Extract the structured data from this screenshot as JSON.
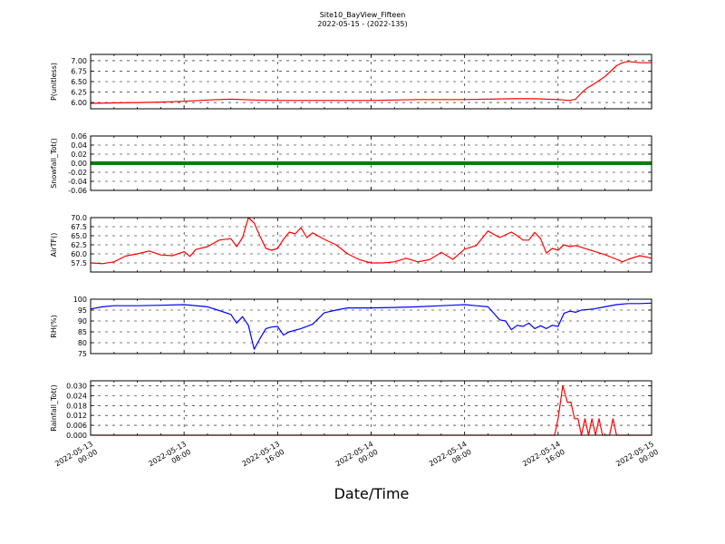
{
  "figure": {
    "title": "Site10_BayView_Fifteen",
    "subtitle": "2022-05-15 - (2022-135)",
    "xlabel": "Date/Time"
  },
  "x_ticks": [
    {
      "t": 0,
      "line1": "2022-05-13",
      "line2": "00:00"
    },
    {
      "t": 8,
      "line1": "2022-05-13",
      "line2": "08:00"
    },
    {
      "t": 16,
      "line1": "2022-05-13",
      "line2": "16:00"
    },
    {
      "t": 24,
      "line1": "2022-05-14",
      "line2": "00:00"
    },
    {
      "t": 32,
      "line1": "2022-05-14",
      "line2": "08:00"
    },
    {
      "t": 40,
      "line1": "2022-05-14",
      "line2": "16:00"
    },
    {
      "t": 48,
      "line1": "2022-05-15",
      "line2": "00:00"
    }
  ],
  "chart_data": [
    {
      "type": "line",
      "ylabel": "P(unitless)",
      "ylim": [
        5.85,
        7.15
      ],
      "yticks": [
        "6.00",
        "6.25",
        "6.50",
        "6.75",
        "7.00"
      ],
      "ytick_values": [
        6.0,
        6.25,
        6.5,
        6.75,
        7.0
      ],
      "color": "#ff0000",
      "x_hours": [
        0,
        2,
        4,
        6,
        8,
        10,
        12,
        14,
        16,
        20,
        24,
        28,
        32,
        36,
        38,
        40,
        40.5,
        41,
        41.5,
        42,
        42.5,
        43,
        44,
        44.5,
        45,
        45.5,
        46,
        47,
        48
      ],
      "y": [
        5.98,
        5.99,
        6.0,
        6.01,
        6.03,
        6.06,
        6.08,
        6.06,
        6.05,
        6.05,
        6.05,
        6.07,
        6.07,
        6.09,
        6.09,
        6.07,
        6.06,
        6.05,
        6.08,
        6.23,
        6.35,
        6.43,
        6.62,
        6.75,
        6.88,
        6.95,
        6.98,
        6.95,
        6.95
      ]
    },
    {
      "type": "line",
      "ylabel": "Snowfall_Tot()",
      "ylim": [
        -0.06,
        0.06
      ],
      "yticks": [
        "0.06",
        "0.04",
        "0.02",
        "0.00",
        "-0.02",
        "-0.04",
        "-0.06"
      ],
      "ytick_values": [
        0.06,
        0.04,
        0.02,
        0.0,
        -0.02,
        -0.04,
        -0.06
      ],
      "color": "#008000",
      "x_hours": [
        0,
        48
      ],
      "y": [
        0,
        0
      ]
    },
    {
      "type": "line",
      "ylabel": "AirTF()",
      "ylim": [
        55.0,
        70.0
      ],
      "yticks": [
        "70.0",
        "67.5",
        "65.0",
        "62.5",
        "60.0",
        "57.5"
      ],
      "ytick_values": [
        70.0,
        67.5,
        65.0,
        62.5,
        60.0,
        57.5
      ],
      "color": "#ff0000",
      "x_hours": [
        0,
        1,
        2,
        3,
        4,
        5,
        6,
        7,
        8,
        8.5,
        9,
        10,
        11,
        12,
        12.5,
        13,
        13.5,
        14,
        14.5,
        15,
        15.5,
        16,
        16.5,
        17,
        17.5,
        18,
        18.5,
        19,
        20,
        21,
        22,
        23,
        24,
        25,
        26,
        27,
        28,
        29,
        30,
        31,
        32,
        33,
        34,
        35,
        36,
        36.5,
        37,
        37.5,
        38,
        38.5,
        39,
        39.5,
        40,
        40.5,
        41,
        41.5,
        42,
        43,
        44,
        45,
        45.5,
        46,
        47,
        48
      ],
      "y": [
        57.5,
        57.3,
        57.8,
        59.4,
        60.0,
        60.8,
        59.7,
        59.5,
        60.6,
        59.3,
        61.2,
        62.0,
        63.8,
        64.2,
        62.0,
        64.5,
        70.0,
        68.5,
        64.8,
        61.5,
        61.0,
        61.5,
        64.0,
        66.0,
        65.5,
        67.2,
        64.5,
        65.8,
        64.0,
        62.5,
        60.0,
        58.4,
        57.5,
        57.5,
        57.8,
        58.8,
        57.8,
        58.4,
        60.4,
        58.5,
        61.3,
        62.3,
        66.3,
        64.5,
        66.0,
        65.0,
        63.8,
        63.8,
        65.9,
        64.2,
        60.2,
        61.5,
        61.0,
        62.5,
        62.0,
        62.3,
        61.8,
        60.8,
        59.8,
        58.5,
        57.8,
        58.5,
        59.5,
        58.8
      ]
    },
    {
      "type": "line",
      "ylabel": "RH(%)",
      "ylim": [
        75,
        100
      ],
      "yticks": [
        "100",
        "95",
        "90",
        "85",
        "80",
        "75"
      ],
      "ytick_values": [
        100,
        95,
        90,
        85,
        80,
        75
      ],
      "color": "#0000ff",
      "x_hours": [
        0,
        1,
        2,
        4,
        6,
        8,
        10,
        11,
        12,
        12.5,
        13,
        13.5,
        14,
        14.5,
        15,
        15.5,
        16,
        16.5,
        17,
        18,
        19,
        20,
        21,
        22,
        24,
        26,
        28,
        30,
        32,
        33,
        34,
        35,
        35.5,
        36,
        36.5,
        37,
        37.5,
        38,
        38.5,
        39,
        39.5,
        40,
        40.5,
        41,
        41.5,
        42,
        43,
        44,
        45,
        46,
        47,
        48
      ],
      "y": [
        95.5,
        96.5,
        97.0,
        97.0,
        97.2,
        97.5,
        96.5,
        94.8,
        93.0,
        89.0,
        92.0,
        88.0,
        77.0,
        82.0,
        86.5,
        87.2,
        87.5,
        83.5,
        85.0,
        86.5,
        88.5,
        93.8,
        95.0,
        96.0,
        96.0,
        96.2,
        96.5,
        97.0,
        97.5,
        97.0,
        96.5,
        90.5,
        90.0,
        86.0,
        88.0,
        87.5,
        89.0,
        86.5,
        87.8,
        86.5,
        88.0,
        87.5,
        93.5,
        94.5,
        94.0,
        95.0,
        95.5,
        96.5,
        97.5,
        98.0,
        98.0,
        98.2
      ]
    },
    {
      "type": "line",
      "ylabel": "Rainfall_Tot()",
      "ylim": [
        0.0,
        0.033
      ],
      "yticks": [
        "0.030",
        "0.024",
        "0.018",
        "0.012",
        "0.006",
        "0.000"
      ],
      "ytick_values": [
        0.03,
        0.024,
        0.018,
        0.012,
        0.006,
        0.0
      ],
      "color": "#ff0000",
      "x_hours": [
        0,
        39.7,
        40.0,
        40.4,
        40.8,
        41.1,
        41.4,
        41.7,
        42.0,
        42.3,
        42.6,
        42.9,
        43.2,
        43.5,
        43.8,
        44.1,
        44.4,
        44.7,
        45.0,
        45.3,
        45.6,
        48
      ],
      "y": [
        0,
        0,
        0.01,
        0.03,
        0.02,
        0.02,
        0.01,
        0.01,
        0,
        0.01,
        0,
        0.01,
        0,
        0.01,
        0,
        0,
        0,
        0.01,
        0,
        0,
        0,
        0
      ]
    }
  ]
}
